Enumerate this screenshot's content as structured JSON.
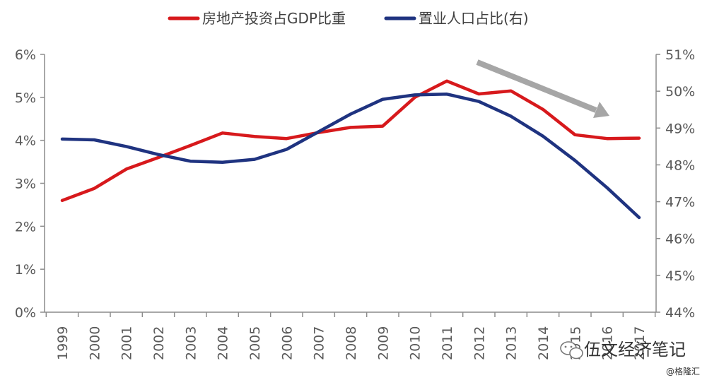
{
  "chart_data": {
    "type": "line",
    "categories": [
      "1999",
      "2000",
      "2001",
      "2002",
      "2003",
      "2004",
      "2005",
      "2006",
      "2007",
      "2008",
      "2009",
      "2010",
      "2011",
      "2012",
      "2013",
      "2014",
      "2015",
      "2016",
      "2017"
    ],
    "series": [
      {
        "name": "房地产投资占GDP比重",
        "axis": "left",
        "color": "#d7191c",
        "values": [
          2.6,
          2.88,
          3.33,
          3.6,
          3.88,
          4.17,
          4.09,
          4.04,
          4.18,
          4.3,
          4.33,
          5.0,
          5.38,
          5.08,
          5.15,
          4.72,
          4.13,
          4.04,
          4.05
        ]
      },
      {
        "name": "置业人口占比(右)",
        "axis": "right",
        "color": "#1f3380",
        "values": [
          48.7,
          48.68,
          48.5,
          48.28,
          48.1,
          48.07,
          48.15,
          48.42,
          48.9,
          49.38,
          49.78,
          49.9,
          49.92,
          49.72,
          49.32,
          48.78,
          48.12,
          47.38,
          46.57
        ]
      }
    ],
    "yaxis_left": {
      "ylim": [
        0,
        6
      ],
      "ticks": [
        "0%",
        "1%",
        "2%",
        "3%",
        "4%",
        "5%",
        "6%"
      ]
    },
    "yaxis_right": {
      "ylim": [
        44,
        51
      ],
      "ticks": [
        "44%",
        "45%",
        "46%",
        "47%",
        "48%",
        "49%",
        "50%",
        "51%"
      ]
    },
    "grid": false,
    "legend_position": "top",
    "annotation": {
      "type": "trend-arrow",
      "color": "#a6a6a6",
      "x_range": [
        "2012",
        "2016"
      ],
      "y_range_left": [
        5.85,
        4.65
      ]
    }
  },
  "watermark": {
    "text": "伍文经济笔记",
    "icon": "wechat-icon"
  },
  "source_credit": "@格隆汇"
}
